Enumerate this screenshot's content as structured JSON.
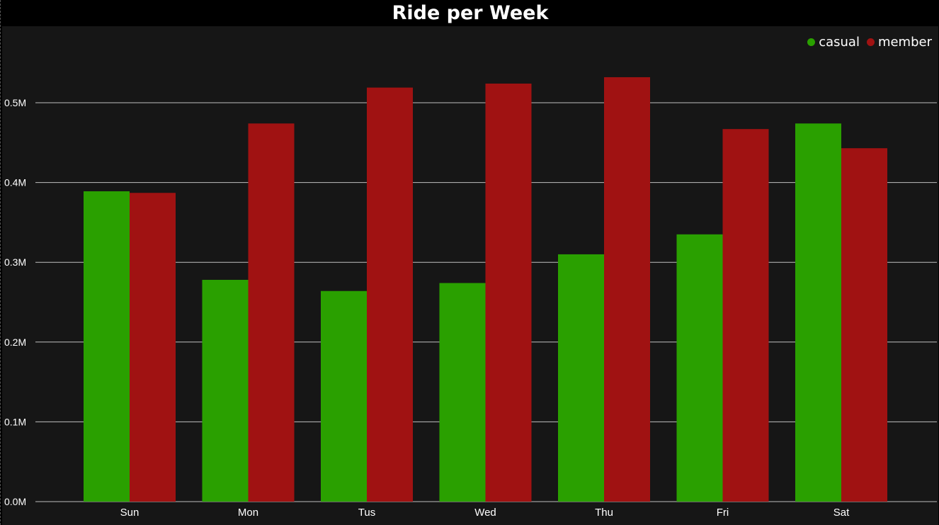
{
  "chart_data": {
    "type": "bar",
    "title": "Ride per Week",
    "categories": [
      "Sun",
      "Mon",
      "Tus",
      "Wed",
      "Thu",
      "Fri",
      "Sat"
    ],
    "series": [
      {
        "name": "casual",
        "color": "#2aa000",
        "values": [
          389000,
          278000,
          264000,
          274000,
          310000,
          335000,
          474000
        ]
      },
      {
        "name": "member",
        "color": "#a01212",
        "values": [
          387000,
          474000,
          519000,
          524000,
          532000,
          467000,
          443000
        ]
      }
    ],
    "yticks": [
      "0.0M",
      "0.1M",
      "0.2M",
      "0.3M",
      "0.4M",
      "0.5M"
    ],
    "ytick_values": [
      0,
      100000,
      200000,
      300000,
      400000,
      500000
    ],
    "ylim": [
      0,
      560000
    ],
    "grid": true,
    "legend_position": "top-right",
    "background": "#161616",
    "gridline_color": "#bfbfbf"
  }
}
